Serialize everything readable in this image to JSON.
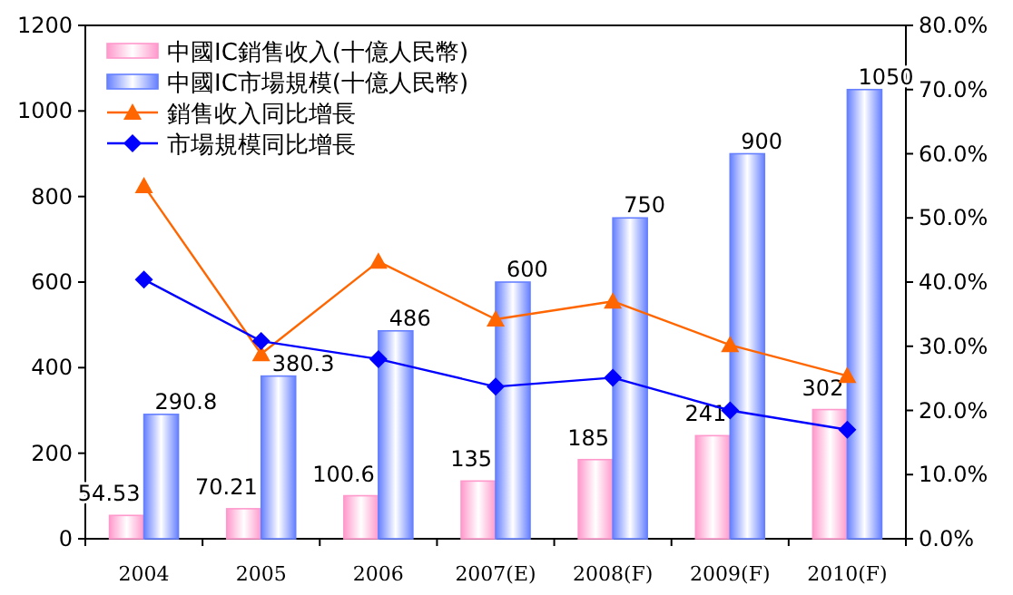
{
  "chart_data": {
    "type": "bar",
    "categories": [
      "2004",
      "2005",
      "2006",
      "2007(E)",
      "2008(F)",
      "2009(F)",
      "2010(F)"
    ],
    "series": [
      {
        "name": "中國IC銷售收入(十億人民幣)",
        "color": "#ff99cc",
        "values": [
          54.53,
          70.21,
          100.6,
          135,
          185,
          241,
          302
        ],
        "value_labels": [
          "54.53",
          "70.21",
          "100.6",
          "135",
          "185",
          "241",
          "302"
        ]
      },
      {
        "name": "中國IC市場規模(十億人民幣)",
        "color": "#6680ff",
        "values": [
          290.8,
          380.3,
          486,
          600,
          750,
          900,
          1050
        ],
        "value_labels": [
          "290.8",
          "380.3",
          "486",
          "600",
          "750",
          "900",
          "1050"
        ]
      },
      {
        "name": "銷售收入同比增長",
        "type": "line",
        "axis": "y2",
        "marker": "triangle",
        "color": "#ff6600",
        "values": [
          55,
          28.8,
          43.2,
          34.2,
          37,
          30.2,
          25.4
        ]
      },
      {
        "name": "市場規模同比增長",
        "type": "line",
        "axis": "y2",
        "marker": "diamond",
        "color": "#0000ff",
        "values": [
          40.4,
          30.8,
          28,
          23.7,
          25.1,
          20,
          17
        ]
      }
    ],
    "ylim": [
      0,
      1200
    ],
    "yticks": [
      0,
      200,
      400,
      600,
      800,
      1000,
      1200
    ],
    "y2lim": [
      0,
      80
    ],
    "y2ticks": [
      {
        "value": 0,
        "label": "0.0%"
      },
      {
        "value": 10,
        "label": "10.0%"
      },
      {
        "value": 20,
        "label": "20.0%"
      },
      {
        "value": 30,
        "label": "30.0%"
      },
      {
        "value": 40,
        "label": "40.0%"
      },
      {
        "value": 50,
        "label": "50.0%"
      },
      {
        "value": 60,
        "label": "60.0%"
      },
      {
        "value": 70,
        "label": "70.0%"
      },
      {
        "value": 80,
        "label": "80.0%"
      }
    ],
    "grid": false,
    "legend": "top left"
  }
}
